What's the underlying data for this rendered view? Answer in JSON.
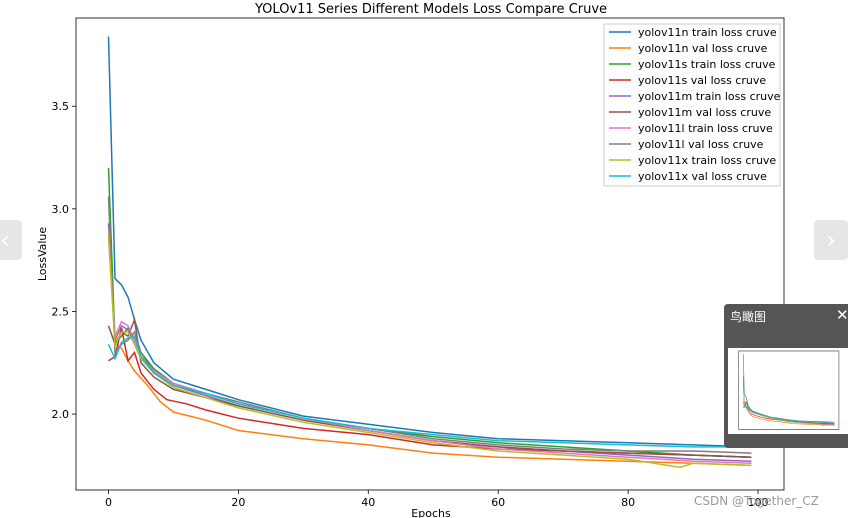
{
  "chart_data": {
    "type": "line",
    "title": "YOLOv11 Series Different Models Loss Compare Cruve",
    "xlabel": "Epochs",
    "ylabel": "LossValue",
    "xlim": [
      -5,
      104
    ],
    "ylim": [
      1.63,
      3.93
    ],
    "xticks": [
      0,
      20,
      40,
      60,
      80,
      100
    ],
    "yticks": [
      2.0,
      2.5,
      3.0,
      3.5
    ],
    "legend_position": "top-right",
    "grid": false,
    "series": [
      {
        "name": "yolov11n train loss cruve",
        "color": "#1f77b4",
        "points": [
          [
            0,
            3.84
          ],
          [
            1,
            2.66
          ],
          [
            2,
            2.63
          ],
          [
            3,
            2.57
          ],
          [
            4,
            2.46
          ],
          [
            5,
            2.36
          ],
          [
            7,
            2.25
          ],
          [
            10,
            2.17
          ],
          [
            15,
            2.12
          ],
          [
            20,
            2.07
          ],
          [
            30,
            1.99
          ],
          [
            40,
            1.95
          ],
          [
            50,
            1.91
          ],
          [
            60,
            1.88
          ],
          [
            70,
            1.87
          ],
          [
            80,
            1.86
          ],
          [
            90,
            1.85
          ],
          [
            99,
            1.84
          ]
        ]
      },
      {
        "name": "yolov11n val loss cruve",
        "color": "#ff7f0e",
        "points": [
          [
            0,
            2.87
          ],
          [
            1,
            2.35
          ],
          [
            2,
            2.32
          ],
          [
            3,
            2.26
          ],
          [
            4,
            2.21
          ],
          [
            6,
            2.14
          ],
          [
            8,
            2.06
          ],
          [
            10,
            2.01
          ],
          [
            15,
            1.97
          ],
          [
            20,
            1.92
          ],
          [
            30,
            1.88
          ],
          [
            40,
            1.85
          ],
          [
            50,
            1.81
          ],
          [
            60,
            1.79
          ],
          [
            70,
            1.78
          ],
          [
            80,
            1.77
          ],
          [
            90,
            1.76
          ],
          [
            99,
            1.75
          ]
        ]
      },
      {
        "name": "yolov11s train loss cruve",
        "color": "#2ca02c",
        "points": [
          [
            0,
            3.2
          ],
          [
            1,
            2.35
          ],
          [
            2,
            2.38
          ],
          [
            3,
            2.42
          ],
          [
            4,
            2.36
          ],
          [
            5,
            2.3
          ],
          [
            7,
            2.22
          ],
          [
            10,
            2.15
          ],
          [
            15,
            2.1
          ],
          [
            20,
            2.05
          ],
          [
            30,
            1.98
          ],
          [
            40,
            1.93
          ],
          [
            50,
            1.89
          ],
          [
            60,
            1.86
          ],
          [
            70,
            1.84
          ],
          [
            80,
            1.82
          ],
          [
            90,
            1.8
          ],
          [
            99,
            1.79
          ]
        ]
      },
      {
        "name": "yolov11s val loss cruve",
        "color": "#d62728",
        "points": [
          [
            0,
            2.26
          ],
          [
            1,
            2.28
          ],
          [
            2,
            2.42
          ],
          [
            3,
            2.26
          ],
          [
            4,
            2.3
          ],
          [
            5,
            2.2
          ],
          [
            7,
            2.12
          ],
          [
            9,
            2.07
          ],
          [
            12,
            2.05
          ],
          [
            15,
            2.02
          ],
          [
            20,
            1.98
          ],
          [
            30,
            1.93
          ],
          [
            40,
            1.9
          ],
          [
            50,
            1.85
          ],
          [
            60,
            1.83
          ],
          [
            70,
            1.82
          ],
          [
            80,
            1.81
          ],
          [
            90,
            1.8
          ],
          [
            99,
            1.79
          ]
        ]
      },
      {
        "name": "yolov11m train loss cruve",
        "color": "#9467bd",
        "points": [
          [
            0,
            2.93
          ],
          [
            1,
            2.36
          ],
          [
            2,
            2.43
          ],
          [
            3,
            2.41
          ],
          [
            4,
            2.34
          ],
          [
            5,
            2.27
          ],
          [
            7,
            2.2
          ],
          [
            10,
            2.14
          ],
          [
            15,
            2.09
          ],
          [
            20,
            2.04
          ],
          [
            30,
            1.97
          ],
          [
            40,
            1.92
          ],
          [
            50,
            1.87
          ],
          [
            60,
            1.84
          ],
          [
            70,
            1.82
          ],
          [
            80,
            1.8
          ],
          [
            90,
            1.78
          ],
          [
            99,
            1.77
          ]
        ]
      },
      {
        "name": "yolov11m val loss cruve",
        "color": "#8c564b",
        "points": [
          [
            0,
            2.43
          ],
          [
            1,
            2.34
          ],
          [
            2,
            2.4
          ],
          [
            3,
            2.38
          ],
          [
            4,
            2.46
          ],
          [
            5,
            2.25
          ],
          [
            7,
            2.18
          ],
          [
            10,
            2.12
          ],
          [
            15,
            2.08
          ],
          [
            20,
            2.04
          ],
          [
            30,
            1.97
          ],
          [
            40,
            1.92
          ],
          [
            50,
            1.87
          ],
          [
            60,
            1.84
          ],
          [
            70,
            1.82
          ],
          [
            80,
            1.81
          ],
          [
            90,
            1.8
          ],
          [
            99,
            1.79
          ]
        ]
      },
      {
        "name": "yolov11l train loss cruve",
        "color": "#e377c2",
        "points": [
          [
            0,
            2.9
          ],
          [
            1,
            2.38
          ],
          [
            2,
            2.45
          ],
          [
            3,
            2.43
          ],
          [
            4,
            2.36
          ],
          [
            5,
            2.28
          ],
          [
            7,
            2.21
          ],
          [
            10,
            2.15
          ],
          [
            15,
            2.1
          ],
          [
            20,
            2.05
          ],
          [
            30,
            1.98
          ],
          [
            40,
            1.92
          ],
          [
            50,
            1.87
          ],
          [
            60,
            1.83
          ],
          [
            70,
            1.81
          ],
          [
            80,
            1.79
          ],
          [
            90,
            1.77
          ],
          [
            99,
            1.76
          ]
        ]
      },
      {
        "name": "yolov11l val loss cruve",
        "color": "#7f7f7f",
        "points": [
          [
            0,
            3.06
          ],
          [
            1,
            2.3
          ],
          [
            2,
            2.34
          ],
          [
            3,
            2.36
          ],
          [
            4,
            2.4
          ],
          [
            5,
            2.3
          ],
          [
            7,
            2.2
          ],
          [
            10,
            2.14
          ],
          [
            15,
            2.1
          ],
          [
            20,
            2.06
          ],
          [
            30,
            1.98
          ],
          [
            40,
            1.93
          ],
          [
            50,
            1.88
          ],
          [
            60,
            1.85
          ],
          [
            70,
            1.83
          ],
          [
            80,
            1.82
          ],
          [
            90,
            1.82
          ],
          [
            99,
            1.81
          ]
        ]
      },
      {
        "name": "yolov11x train loss cruve",
        "color": "#bcbd22",
        "points": [
          [
            0,
            2.88
          ],
          [
            1,
            2.33
          ],
          [
            2,
            2.4
          ],
          [
            3,
            2.4
          ],
          [
            4,
            2.34
          ],
          [
            5,
            2.27
          ],
          [
            7,
            2.2
          ],
          [
            10,
            2.13
          ],
          [
            15,
            2.08
          ],
          [
            20,
            2.03
          ],
          [
            30,
            1.96
          ],
          [
            40,
            1.91
          ],
          [
            50,
            1.86
          ],
          [
            60,
            1.82
          ],
          [
            70,
            1.8
          ],
          [
            80,
            1.78
          ],
          [
            88,
            1.74
          ],
          [
            90,
            1.76
          ],
          [
            99,
            1.75
          ]
        ]
      },
      {
        "name": "yolov11x val loss cruve",
        "color": "#17becf",
        "points": [
          [
            0,
            2.34
          ],
          [
            1,
            2.27
          ],
          [
            2,
            2.35
          ],
          [
            3,
            2.37
          ],
          [
            4,
            2.38
          ],
          [
            5,
            2.28
          ],
          [
            7,
            2.2
          ],
          [
            10,
            2.14
          ],
          [
            15,
            2.1
          ],
          [
            20,
            2.05
          ],
          [
            30,
            1.98
          ],
          [
            40,
            1.93
          ],
          [
            50,
            1.9
          ],
          [
            60,
            1.87
          ],
          [
            70,
            1.86
          ],
          [
            80,
            1.85
          ],
          [
            90,
            1.84
          ],
          [
            99,
            1.84
          ]
        ]
      }
    ]
  },
  "ui": {
    "prev_icon": "‹",
    "next_icon": "›",
    "overview_title": "鸟瞰图",
    "overview_close": "✕",
    "watermark": "CSDN @Together_CZ"
  }
}
